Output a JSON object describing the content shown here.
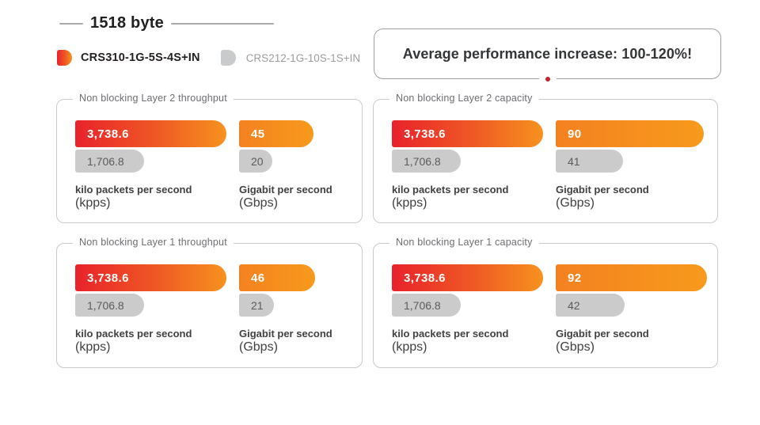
{
  "header": {
    "title": "1518 byte"
  },
  "legend": {
    "items": [
      {
        "label": "CRS310-1G-5S-4S+IN",
        "swatch": "red-orange-gradient"
      },
      {
        "label": "CRS212-1G-10S-1S+IN",
        "swatch": "gray"
      }
    ]
  },
  "banner": {
    "text": "Average performance increase: 100-120%!"
  },
  "colors": {
    "red": "#e8222b",
    "orange": "#f6921e",
    "gray_bar": "#cbcbcb",
    "dot_red": "#c4242b"
  },
  "chart_data": [
    {
      "type": "bar",
      "title": "Non blocking Layer 2 throughput",
      "groups": [
        {
          "unit": "kpps",
          "unit_label": "kilo packets per second",
          "unit_abbr": "(kpps)",
          "series": [
            {
              "name": "CRS310-1G-5S-4S+IN",
              "value": 3738.6,
              "display": "3,738.6"
            },
            {
              "name": "CRS212-1G-10S-1S+IN",
              "value": 1706.8,
              "display": "1,706.8"
            }
          ]
        },
        {
          "unit": "gbps",
          "unit_label": "Gigabit per second",
          "unit_abbr": "(Gbps)",
          "series": [
            {
              "name": "CRS310-1G-5S-4S+IN",
              "value": 45,
              "display": "45"
            },
            {
              "name": "CRS212-1G-10S-1S+IN",
              "value": 20,
              "display": "20"
            }
          ]
        }
      ]
    },
    {
      "type": "bar",
      "title": "Non blocking Layer 2 capacity",
      "groups": [
        {
          "unit": "kpps",
          "unit_label": "kilo packets per second",
          "unit_abbr": "(kpps)",
          "series": [
            {
              "name": "CRS310-1G-5S-4S+IN",
              "value": 3738.6,
              "display": "3,738.6"
            },
            {
              "name": "CRS212-1G-10S-1S+IN",
              "value": 1706.8,
              "display": "1,706.8"
            }
          ]
        },
        {
          "unit": "gbps",
          "unit_label": "Gigabit per second",
          "unit_abbr": "(Gbps)",
          "series": [
            {
              "name": "CRS310-1G-5S-4S+IN",
              "value": 90,
              "display": "90"
            },
            {
              "name": "CRS212-1G-10S-1S+IN",
              "value": 41,
              "display": "41"
            }
          ]
        }
      ]
    },
    {
      "type": "bar",
      "title": "Non blocking Layer 1 throughput",
      "groups": [
        {
          "unit": "kpps",
          "unit_label": "kilo packets per second",
          "unit_abbr": "(kpps)",
          "series": [
            {
              "name": "CRS310-1G-5S-4S+IN",
              "value": 3738.6,
              "display": "3,738.6"
            },
            {
              "name": "CRS212-1G-10S-1S+IN",
              "value": 1706.8,
              "display": "1,706.8"
            }
          ]
        },
        {
          "unit": "gbps",
          "unit_label": "Gigabit per second",
          "unit_abbr": "(Gbps)",
          "series": [
            {
              "name": "CRS310-1G-5S-4S+IN",
              "value": 46,
              "display": "46"
            },
            {
              "name": "CRS212-1G-10S-1S+IN",
              "value": 21,
              "display": "21"
            }
          ]
        }
      ]
    },
    {
      "type": "bar",
      "title": "Non blocking Layer 1 capacity",
      "groups": [
        {
          "unit": "kpps",
          "unit_label": "kilo packets per second",
          "unit_abbr": "(kpps)",
          "series": [
            {
              "name": "CRS310-1G-5S-4S+IN",
              "value": 3738.6,
              "display": "3,738.6"
            },
            {
              "name": "CRS212-1G-10S-1S+IN",
              "value": 1706.8,
              "display": "1,706.8"
            }
          ]
        },
        {
          "unit": "gbps",
          "unit_label": "Gigabit per second",
          "unit_abbr": "(Gbps)",
          "series": [
            {
              "name": "CRS310-1G-5S-4S+IN",
              "value": 92,
              "display": "92"
            },
            {
              "name": "CRS212-1G-10S-1S+IN",
              "value": 42,
              "display": "42"
            }
          ]
        }
      ]
    }
  ]
}
